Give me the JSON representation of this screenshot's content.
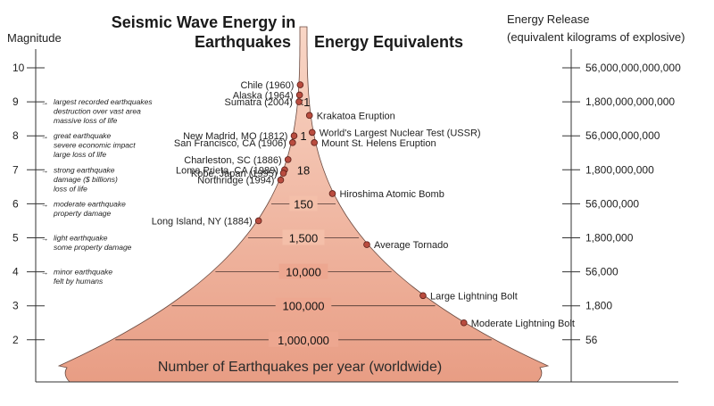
{
  "titles": {
    "main_line1": "Seismic Wave Energy in",
    "main_line2": "Earthquakes",
    "equivalents": "Energy Equivalents",
    "left_axis": "Magnitude",
    "right_axis_line1": "Energy Release",
    "right_axis_line2": "(equivalent kilograms of explosive)",
    "bottom": "Number of Earthquakes per year (worldwide)"
  },
  "colors": {
    "fill_top": "#f9d6c6",
    "fill_bottom": "#e89d84",
    "marker": "#b94c3f",
    "axis": "#333333"
  },
  "magnitude_ticks": [
    {
      "value": "10"
    },
    {
      "value": "9"
    },
    {
      "value": "8"
    },
    {
      "value": "7"
    },
    {
      "value": "6"
    },
    {
      "value": "5"
    },
    {
      "value": "4"
    },
    {
      "value": "3"
    },
    {
      "value": "2"
    }
  ],
  "energy_ticks": [
    {
      "value": "56,000,000,000,000"
    },
    {
      "value": "1,800,000,000,000"
    },
    {
      "value": "56,000,000,000"
    },
    {
      "value": "1,800,000,000"
    },
    {
      "value": "56,000,000"
    },
    {
      "value": "1,800,000"
    },
    {
      "value": "56,000"
    },
    {
      "value": "1,800"
    },
    {
      "value": "56"
    }
  ],
  "descriptions": [
    {
      "magnitude": 9,
      "lines": [
        "largest recorded earthquakes",
        "destruction over vast area",
        "massive loss of life"
      ]
    },
    {
      "magnitude": 8,
      "lines": [
        "great earthquake",
        "severe economic impact",
        "large loss of life"
      ]
    },
    {
      "magnitude": 7,
      "lines": [
        "strong earthquake",
        "damage ($ billions)",
        "loss of life"
      ]
    },
    {
      "magnitude": 6,
      "lines": [
        "moderate earthquake",
        "property damage"
      ]
    },
    {
      "magnitude": 5,
      "lines": [
        "light earthquake",
        "some property damage"
      ]
    },
    {
      "magnitude": 4,
      "lines": [
        "minor earthquake",
        "felt by humans"
      ]
    }
  ],
  "annual_counts": [
    {
      "label": "<1",
      "magnitude": 9
    },
    {
      "label": "1",
      "magnitude": 8
    },
    {
      "label": "18",
      "magnitude": 7
    },
    {
      "label": "150",
      "magnitude": 6
    },
    {
      "label": "1,500",
      "magnitude": 5
    },
    {
      "label": "10,000",
      "magnitude": 4
    },
    {
      "label": "100,000",
      "magnitude": 3
    },
    {
      "label": "1,000,000",
      "magnitude": 2
    }
  ],
  "earthquakes": [
    {
      "label": "Chile (1960)",
      "magnitude": 9.5
    },
    {
      "label": "Alaska (1964)",
      "magnitude": 9.2
    },
    {
      "label": "Sumatra (2004)",
      "magnitude": 9.0
    },
    {
      "label": "New Madrid, MO (1812)",
      "magnitude": 8.0
    },
    {
      "label": "San Francisco, CA (1906)",
      "magnitude": 7.8
    },
    {
      "label": "Charleston, SC (1886)",
      "magnitude": 7.3
    },
    {
      "label": "Loma Prieta, CA (1989)",
      "magnitude": 7.0
    },
    {
      "label": "Kobe, Japan (1995)",
      "magnitude": 6.9
    },
    {
      "label": "Northridge (1994)",
      "magnitude": 6.7
    },
    {
      "label": "Long Island, NY (1884)",
      "magnitude": 5.5
    }
  ],
  "equivalents": [
    {
      "label": "Krakatoa Eruption",
      "magnitude": 8.6
    },
    {
      "label": "World's Largest Nuclear Test (USSR)",
      "magnitude": 8.1
    },
    {
      "label": "Mount St. Helens Eruption",
      "magnitude": 7.8
    },
    {
      "label": "Hiroshima Atomic Bomb",
      "magnitude": 6.3
    },
    {
      "label": "Average Tornado",
      "magnitude": 4.8
    },
    {
      "label": "Large Lightning Bolt",
      "magnitude": 3.3
    },
    {
      "label": "Moderate Lightning Bolt",
      "magnitude": 2.5
    }
  ]
}
